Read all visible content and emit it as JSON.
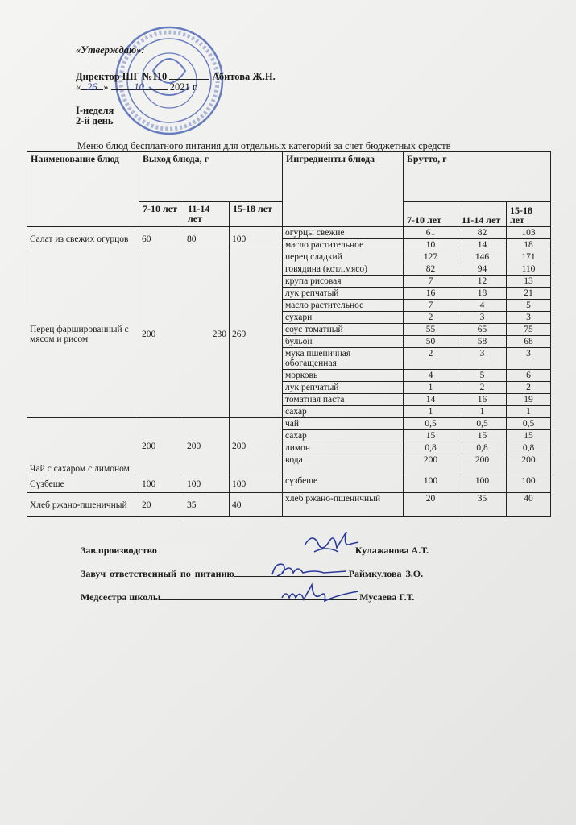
{
  "approval": {
    "approved": "«Утверждаю»:",
    "director": "Директор ШГ №110",
    "director_name": "Абитова Ж.Н.",
    "date_day": "26",
    "date_month": "10",
    "date_year": "2021 г.",
    "week": "I-неделя",
    "day": "2-й день"
  },
  "title": "Меню блюд бесплатного питания для отдельных категорий за счет бюджетных средств",
  "table": {
    "headers": {
      "dish": "Наименование блюд",
      "yield": "Выход блюда, г",
      "ingredients": "Ингредиенты блюда",
      "gross": "Брутто, г",
      "ages": [
        "7-10 лет",
        "11-14 лет",
        "15-18 лет"
      ]
    },
    "dishes": [
      {
        "name": "Салат из свежих огурцов",
        "yield": [
          "60",
          "80",
          "100"
        ],
        "ingredients": [
          {
            "name": "огурцы свежие",
            "gross": [
              "61",
              "82",
              "103"
            ]
          },
          {
            "name": "масло растительное",
            "gross": [
              "10",
              "14",
              "18"
            ]
          }
        ]
      },
      {
        "name": "Перец фаршированный с мясом и рисом",
        "yield": [
          "200",
          "230",
          "269"
        ],
        "ingredients": [
          {
            "name": "перец сладкий",
            "gross": [
              "127",
              "146",
              "171"
            ]
          },
          {
            "name": "говядина (котл.мясо)",
            "gross": [
              "82",
              "94",
              "110"
            ]
          },
          {
            "name": "крупа рисовая",
            "gross": [
              "7",
              "12",
              "13"
            ]
          },
          {
            "name": "лук репчатый",
            "gross": [
              "16",
              "18",
              "21"
            ]
          },
          {
            "name": "масло растительное",
            "gross": [
              "7",
              "4",
              "5"
            ]
          },
          {
            "name": "сухари",
            "gross": [
              "2",
              "3",
              "3"
            ]
          },
          {
            "name": "соус томатный",
            "gross": [
              "55",
              "65",
              "75"
            ]
          },
          {
            "name": "бульон",
            "gross": [
              "50",
              "58",
              "68"
            ]
          },
          {
            "name": "мука пшеничная обогащенная",
            "gross": [
              "2",
              "3",
              "3"
            ]
          },
          {
            "name": "морковь",
            "gross": [
              "4",
              "5",
              "6"
            ]
          },
          {
            "name": "лук репчатый",
            "gross": [
              "1",
              "2",
              "2"
            ]
          },
          {
            "name": "томатная паста",
            "gross": [
              "14",
              "16",
              "19"
            ]
          },
          {
            "name": "сахар",
            "gross": [
              "1",
              "1",
              "1"
            ]
          }
        ]
      },
      {
        "name": "Чай с сахаром с лимоном",
        "yield": [
          "200",
          "200",
          "200"
        ],
        "ingredients": [
          {
            "name": "чай",
            "gross": [
              "0,5",
              "0,5",
              "0,5"
            ]
          },
          {
            "name": "сахар",
            "gross": [
              "15",
              "15",
              "15"
            ]
          },
          {
            "name": "лимон",
            "gross": [
              "0,8",
              "0,8",
              "0,8"
            ]
          },
          {
            "name": "вода",
            "gross": [
              "200",
              "200",
              "200"
            ]
          }
        ]
      },
      {
        "name": "Сүзбеше",
        "yield": [
          "100",
          "100",
          "100"
        ],
        "ingredients": [
          {
            "name": "сүзбеше",
            "gross": [
              "100",
              "100",
              "100"
            ]
          }
        ]
      },
      {
        "name": "Хлеб ржано-пшеничный",
        "yield": [
          "20",
          "35",
          "40"
        ],
        "ingredients": [
          {
            "name": "хлеб ржано-пшеничный",
            "gross": [
              "20",
              "35",
              "40"
            ]
          }
        ]
      }
    ]
  },
  "signatures": [
    {
      "role": "Зав.производство",
      "name": "Кулажанова А.Т."
    },
    {
      "role": "Завуч  ответственный  по  питанию",
      "name": "Раймкулова З.О."
    },
    {
      "role": "Медсестра  школы",
      "name": "Мусаева Г.Т."
    }
  ],
  "colors": {
    "stamp": "#3a55b0",
    "ink": "#2a3a9a",
    "paper": "#efefed"
  }
}
